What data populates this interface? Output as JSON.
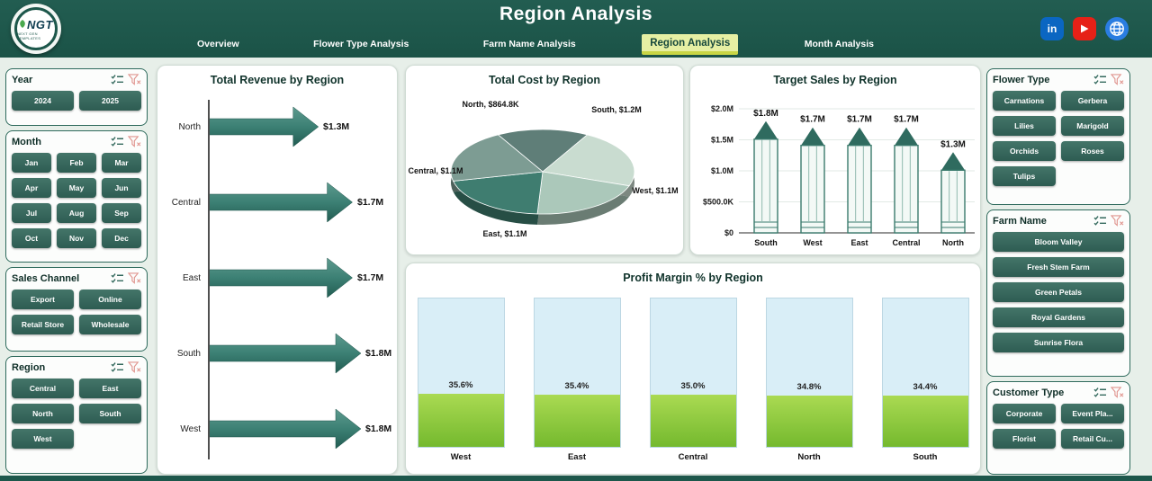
{
  "header": {
    "title": "Region Analysis",
    "logo": {
      "text": "NGT",
      "subtext": "NEXT GEN TEMPLATES"
    },
    "tabs": [
      {
        "label": "Overview",
        "active": false
      },
      {
        "label": "Flower Type Analysis",
        "active": false
      },
      {
        "label": "Farm Name Analysis",
        "active": false
      },
      {
        "label": "Region Analysis",
        "active": true
      },
      {
        "label": "Month Analysis",
        "active": false
      }
    ],
    "social": {
      "linkedin_label": "in"
    }
  },
  "slicers": {
    "left": [
      {
        "title": "Year",
        "cols": 2,
        "items": [
          "2024",
          "2025"
        ]
      },
      {
        "title": "Month",
        "cols": 3,
        "items": [
          "Jan",
          "Feb",
          "Mar",
          "Apr",
          "May",
          "Jun",
          "Jul",
          "Aug",
          "Sep",
          "Oct",
          "Nov",
          "Dec"
        ]
      },
      {
        "title": "Sales Channel",
        "cols": 2,
        "items": [
          "Export",
          "Online",
          "Retail Store",
          "Wholesale"
        ]
      },
      {
        "title": "Region",
        "cols": 2,
        "items": [
          "Central",
          "East",
          "North",
          "South",
          "West"
        ]
      }
    ],
    "right": [
      {
        "title": "Flower Type",
        "cols": 2,
        "items": [
          "Carnations",
          "Gerbera",
          "Lilies",
          "Marigold",
          "Orchids",
          "Roses",
          "Tulips"
        ]
      },
      {
        "title": "Farm Name",
        "cols": 1,
        "items": [
          "Bloom Valley",
          "Fresh Stem Farm",
          "Green Petals",
          "Royal Gardens",
          "Sunrise Flora"
        ]
      },
      {
        "title": "Customer Type",
        "cols": 2,
        "items": [
          "Corporate",
          "Event Pla...",
          "Florist",
          "Retail Cu..."
        ]
      }
    ]
  },
  "chart_data": [
    {
      "type": "bar",
      "variant": "arrow",
      "title": "Total Revenue by Region",
      "categories": [
        "North",
        "Central",
        "East",
        "South",
        "West"
      ],
      "values": [
        1.3,
        1.7,
        1.7,
        1.8,
        1.8
      ],
      "labels": [
        "$1.3M",
        "$1.7M",
        "$1.7M",
        "$1.8M",
        "$1.8M"
      ],
      "unit": "USD millions",
      "xlabel": "",
      "ylabel": ""
    },
    {
      "type": "pie",
      "title": "Total Cost by Region",
      "categories": [
        "North",
        "South",
        "West",
        "East",
        "Central"
      ],
      "values": [
        0.8648,
        1.2,
        1.1,
        1.1,
        1.1
      ],
      "value_labels": [
        "$864.8K",
        "$1.2M",
        "$1.1M",
        "$1.1M",
        "$1.1M"
      ],
      "labels": [
        "North, $864.8K",
        "South, $1.2M",
        "West, $1.1M",
        "East, $1.1M",
        "Central, $1.1M"
      ],
      "unit": "USD millions"
    },
    {
      "type": "bar",
      "variant": "pencil",
      "title": "Target Sales by Region",
      "categories": [
        "South",
        "West",
        "East",
        "Central",
        "North"
      ],
      "values": [
        1.8,
        1.7,
        1.7,
        1.7,
        1.3
      ],
      "labels": [
        "$1.8M",
        "$1.7M",
        "$1.7M",
        "$1.7M",
        "$1.3M"
      ],
      "ylim": [
        0,
        2
      ],
      "yticks": [
        "$0",
        "$500.0K",
        "$1.0M",
        "$1.5M",
        "$2.0M"
      ],
      "unit": "USD millions"
    },
    {
      "type": "bar",
      "variant": "thermometer",
      "title": "Profit Margin % by Region",
      "categories": [
        "West",
        "East",
        "Central",
        "North",
        "South"
      ],
      "values": [
        35.6,
        35.4,
        35.0,
        34.8,
        34.4
      ],
      "labels": [
        "35.6%",
        "35.4%",
        "35.0%",
        "34.8%",
        "34.4%"
      ],
      "ylim": [
        0,
        100
      ]
    }
  ],
  "colors": {
    "header_bg": "#1e584c",
    "page_bg": "#e7efe9",
    "accent_teal": "#2e6a5c",
    "button_top": "#447569",
    "button_bottom": "#2e5c52",
    "active_tab_bg": "#e6efa3",
    "active_tab_underline": "#c8d645",
    "arrow_gradient": [
      "#5d9a8e",
      "#3c8074",
      "#225c52"
    ],
    "pie_palette": [
      "#5f7e78",
      "#c9dcd0",
      "#abc8ba",
      "#3f7d70",
      "#7d9c93"
    ],
    "pencil_tip": "#2f6b5f",
    "pencil_stroke": "#3a7a6d",
    "pencil_body": "#f3f9f6",
    "thermo_bg": "#d9eef7",
    "thermo_fill_top": "#aada52",
    "thermo_fill_bottom": "#74b92e",
    "linkedin": "#0a66c2",
    "youtube": "#e62117",
    "globe": "#2a7de1"
  }
}
